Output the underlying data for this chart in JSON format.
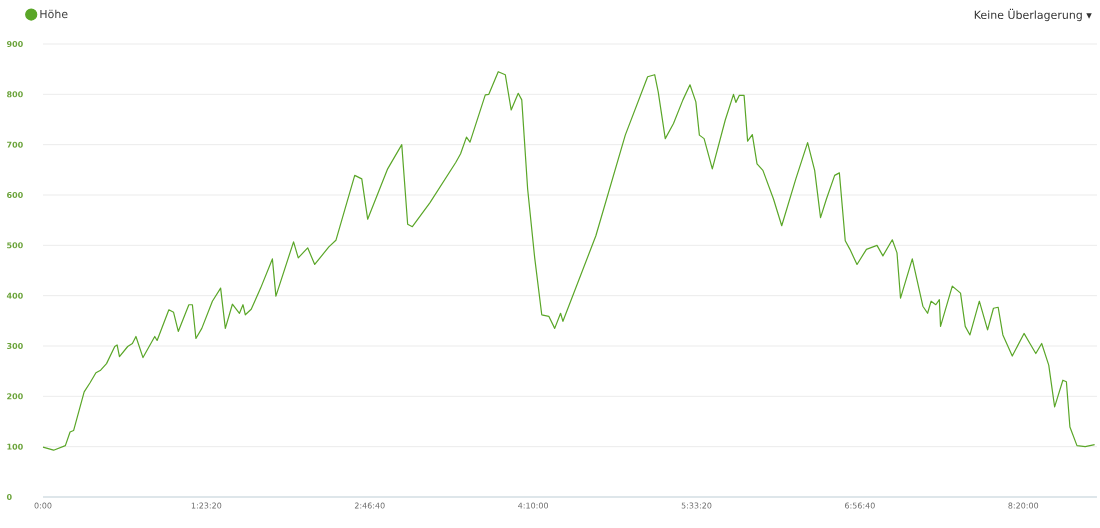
{
  "chart_data": {
    "type": "line",
    "annotations": [
      "Keine Überlagerung ▾"
    ],
    "legend": "top left",
    "grid": "y",
    "marker": "none",
    "line_style": "solid",
    "xlim": [
      0,
      8.96
    ],
    "ylim": [
      0,
      900
    ],
    "xticks": [
      {
        "value": 0,
        "label": "0:00"
      },
      {
        "value": 1.38889,
        "label": "1:23:20"
      },
      {
        "value": 2.77778,
        "label": "2:46:40"
      },
      {
        "value": 4.16667,
        "label": "4:10:00"
      },
      {
        "value": 5.55556,
        "label": "5:33:20"
      },
      {
        "value": 6.94444,
        "label": "6:56:40"
      },
      {
        "value": 8.33333,
        "label": "8:20:00"
      }
    ],
    "yticks": [
      0,
      100,
      200,
      300,
      400,
      500,
      600,
      700,
      800,
      900
    ],
    "series": [
      {
        "name": "Höhe",
        "color": "#5aa628",
        "x": [
          0,
          0.09,
          0.19,
          0.23,
          0.26,
          0.35,
          0.4,
          0.45,
          0.49,
          0.54,
          0.61,
          0.63,
          0.65,
          0.72,
          0.76,
          0.79,
          0.85,
          0.95,
          0.97,
          1.07,
          1.11,
          1.15,
          1.24,
          1.27,
          1.3,
          1.35,
          1.44,
          1.51,
          1.55,
          1.61,
          1.67,
          1.7,
          1.72,
          1.77,
          1.85,
          1.95,
          1.98,
          2.13,
          2.17,
          2.25,
          2.31,
          2.43,
          2.49,
          2.65,
          2.71,
          2.76,
          2.93,
          3.05,
          3.1,
          3.14,
          3.29,
          3.51,
          3.55,
          3.6,
          3.63,
          3.76,
          3.79,
          3.87,
          3.93,
          3.98,
          4.04,
          4.07,
          4.12,
          4.18,
          4.24,
          4.3,
          4.35,
          4.4,
          4.42,
          4.7,
          4.95,
          5.14,
          5.2,
          5.23,
          5.29,
          5.36,
          5.44,
          5.5,
          5.55,
          5.58,
          5.62,
          5.69,
          5.8,
          5.87,
          5.89,
          5.92,
          5.96,
          5.99,
          6.03,
          6.07,
          6.12,
          6.21,
          6.28,
          6.4,
          6.5,
          6.56,
          6.61,
          6.66,
          6.73,
          6.77,
          6.82,
          6.86,
          6.92,
          7.0,
          7.09,
          7.14,
          7.22,
          7.26,
          7.29,
          7.39,
          7.48,
          7.52,
          7.55,
          7.59,
          7.62,
          7.63,
          7.73,
          7.8,
          7.84,
          7.88,
          7.96,
          8.03,
          8.08,
          8.12,
          8.16,
          8.24,
          8.34,
          8.39,
          8.44,
          8.49,
          8.55,
          8.6,
          8.67,
          8.7,
          8.73,
          8.79,
          8.86,
          8.94
        ],
        "values": [
          99,
          93,
          102,
          129,
          132,
          209,
          227,
          247,
          252,
          265,
          299,
          302,
          279,
          299,
          305,
          319,
          277,
          319,
          311,
          372,
          367,
          329,
          382,
          382,
          315,
          335,
          389,
          415,
          335,
          383,
          365,
          382,
          362,
          373,
          415,
          473,
          399,
          507,
          475,
          495,
          462,
          497,
          510,
          639,
          632,
          552,
          652,
          700,
          542,
          537,
          585,
          665,
          682,
          715,
          705,
          799,
          800,
          845,
          839,
          769,
          802,
          789,
          612,
          475,
          362,
          359,
          335,
          365,
          349,
          519,
          719,
          835,
          839,
          805,
          712,
          742,
          789,
          819,
          785,
          719,
          712,
          652,
          749,
          800,
          784,
          798,
          798,
          707,
          720,
          662,
          649,
          592,
          539,
          632,
          704,
          649,
          555,
          592,
          639,
          644,
          509,
          492,
          462,
          492,
          500,
          479,
          511,
          485,
          395,
          473,
          379,
          365,
          389,
          382,
          392,
          339,
          419,
          405,
          339,
          322,
          389,
          332,
          375,
          377,
          322,
          280,
          325,
          305,
          285,
          305,
          262,
          179,
          232,
          229,
          139,
          102,
          100,
          104
        ]
      }
    ]
  }
}
